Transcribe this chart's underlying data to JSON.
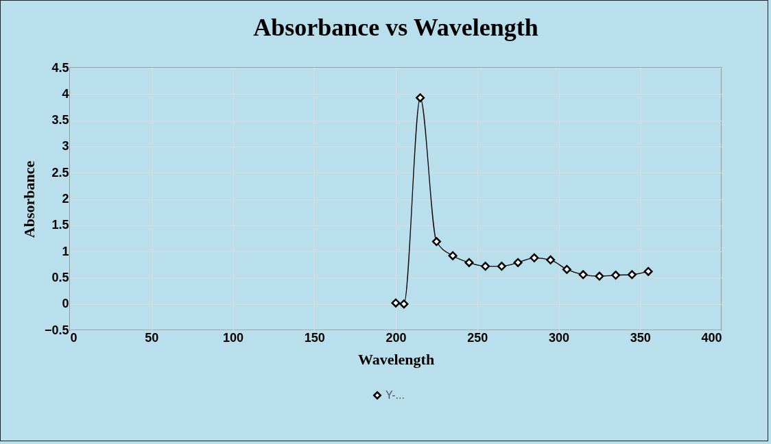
{
  "chart_data": {
    "type": "line",
    "title": "Absorbance vs Wavelength",
    "xlabel": "Wavelength",
    "ylabel": "Absorbance",
    "x": [
      200,
      205,
      215,
      225,
      235,
      245,
      255,
      265,
      275,
      285,
      295,
      305,
      315,
      325,
      335,
      345,
      355
    ],
    "series": [
      {
        "name": "Y-...",
        "color": "#000000",
        "values": [
          0.02,
          0,
          3.93,
          1.19,
          0.92,
          0.79,
          0.72,
          0.72,
          0.79,
          0.88,
          0.84,
          0.66,
          0.56,
          0.53,
          0.55,
          0.56,
          0.62
        ]
      }
    ],
    "xlim": [
      0,
      400
    ],
    "xticks": [
      0,
      50,
      100,
      150,
      200,
      250,
      300,
      350,
      400
    ],
    "ylim": [
      -0.5,
      4.5
    ],
    "yticks": [
      -0.5,
      0,
      0.5,
      1,
      1.5,
      2,
      2.5,
      3,
      3.5,
      4,
      4.5
    ],
    "grid": true,
    "legend": "bottom",
    "marker": "diamond",
    "line_style": "solid"
  }
}
